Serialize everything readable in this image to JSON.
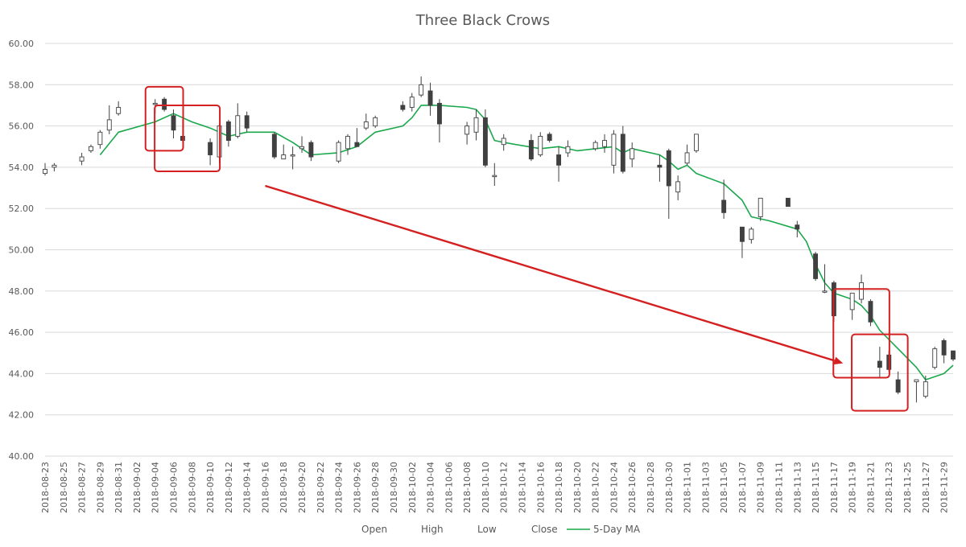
{
  "chart_data": {
    "type": "candlestick",
    "title": "Three Black Crows",
    "ylim": [
      40,
      60
    ],
    "y_ticks": [
      "40.00",
      "42.00",
      "44.00",
      "46.00",
      "48.00",
      "50.00",
      "52.00",
      "54.00",
      "56.00",
      "58.00",
      "60.00"
    ],
    "x_start": "2018-08-23",
    "x_end": "2018-11-30",
    "x_tick_labels": [
      "2018-08-23",
      "2018-08-25",
      "2018-08-27",
      "2018-08-29",
      "2018-08-31",
      "2018-09-02",
      "2018-09-04",
      "2018-09-06",
      "2018-09-08",
      "2018-09-10",
      "2018-09-12",
      "2018-09-14",
      "2018-09-16",
      "2018-09-18",
      "2018-09-20",
      "2018-09-22",
      "2018-09-24",
      "2018-09-26",
      "2018-09-28",
      "2018-09-30",
      "2018-10-02",
      "2018-10-04",
      "2018-10-06",
      "2018-10-08",
      "2018-10-10",
      "2018-10-12",
      "2018-10-14",
      "2018-10-16",
      "2018-10-18",
      "2018-10-20",
      "2018-10-22",
      "2018-10-24",
      "2018-10-26",
      "2018-10-28",
      "2018-10-30",
      "2018-11-01",
      "2018-11-03",
      "2018-11-05",
      "2018-11-07",
      "2018-11-09",
      "2018-11-11",
      "2018-11-13",
      "2018-11-15",
      "2018-11-17",
      "2018-11-19",
      "2018-11-21",
      "2018-11-23",
      "2018-11-25",
      "2018-11-27",
      "2018-11-29"
    ],
    "legend": [
      "Open",
      "High",
      "Low",
      "Close",
      "5-Day MA"
    ],
    "legend_position": "bottom",
    "colors": {
      "ma": "#1aa84c",
      "up": "#ffffff",
      "down": "#404040",
      "wick": "#404040",
      "annotation": "#d42020",
      "grid": "#d9d9d9"
    },
    "candles": [
      {
        "date": "2018-08-23",
        "open": 53.7,
        "high": 54.2,
        "low": 53.6,
        "close": 53.9
      },
      {
        "date": "2018-08-24",
        "open": 54.0,
        "high": 54.2,
        "low": 53.8,
        "close": 54.1
      },
      {
        "date": "2018-08-27",
        "open": 54.3,
        "high": 54.7,
        "low": 54.1,
        "close": 54.5
      },
      {
        "date": "2018-08-28",
        "open": 54.8,
        "high": 55.1,
        "low": 54.7,
        "close": 55.0
      },
      {
        "date": "2018-08-29",
        "open": 55.1,
        "high": 55.8,
        "low": 54.9,
        "close": 55.7
      },
      {
        "date": "2018-08-30",
        "open": 55.8,
        "high": 57.0,
        "low": 55.6,
        "close": 56.3
      },
      {
        "date": "2018-08-31",
        "open": 56.6,
        "high": 57.2,
        "low": 56.5,
        "close": 56.9
      },
      {
        "date": "2018-09-04",
        "open": 57.1,
        "high": 57.3,
        "low": 56.6,
        "close": 57.1
      },
      {
        "date": "2018-09-05",
        "open": 57.3,
        "high": 57.4,
        "low": 56.7,
        "close": 56.8
      },
      {
        "date": "2018-09-06",
        "open": 56.5,
        "high": 56.8,
        "low": 55.4,
        "close": 55.8
      },
      {
        "date": "2018-09-07",
        "open": 55.5,
        "high": 56.3,
        "low": 55.2,
        "close": 55.3
      },
      {
        "date": "2018-09-10",
        "open": 55.2,
        "high": 55.4,
        "low": 54.1,
        "close": 54.6
      },
      {
        "date": "2018-09-11",
        "open": 54.5,
        "high": 56.1,
        "low": 54.2,
        "close": 56.0
      },
      {
        "date": "2018-09-12",
        "open": 56.2,
        "high": 56.3,
        "low": 55.0,
        "close": 55.3
      },
      {
        "date": "2018-09-13",
        "open": 55.5,
        "high": 57.1,
        "low": 55.4,
        "close": 56.5
      },
      {
        "date": "2018-09-14",
        "open": 56.5,
        "high": 56.7,
        "low": 55.7,
        "close": 55.9
      },
      {
        "date": "2018-09-17",
        "open": 55.6,
        "high": 55.7,
        "low": 54.4,
        "close": 54.5
      },
      {
        "date": "2018-09-18",
        "open": 54.4,
        "high": 55.1,
        "low": 54.4,
        "close": 54.6
      },
      {
        "date": "2018-09-19",
        "open": 54.6,
        "high": 55.0,
        "low": 53.9,
        "close": 54.6
      },
      {
        "date": "2018-09-20",
        "open": 54.9,
        "high": 55.5,
        "low": 54.7,
        "close": 55.0
      },
      {
        "date": "2018-09-21",
        "open": 55.2,
        "high": 55.3,
        "low": 54.3,
        "close": 54.5
      },
      {
        "date": "2018-09-24",
        "open": 54.3,
        "high": 55.3,
        "low": 54.2,
        "close": 55.2
      },
      {
        "date": "2018-09-25",
        "open": 54.9,
        "high": 55.6,
        "low": 54.6,
        "close": 55.5
      },
      {
        "date": "2018-09-26",
        "open": 55.2,
        "high": 55.9,
        "low": 55.0,
        "close": 55.0
      },
      {
        "date": "2018-09-27",
        "open": 55.9,
        "high": 56.6,
        "low": 55.8,
        "close": 56.2
      },
      {
        "date": "2018-09-28",
        "open": 56.0,
        "high": 56.5,
        "low": 55.9,
        "close": 56.4
      },
      {
        "date": "2018-10-01",
        "open": 57.0,
        "high": 57.2,
        "low": 56.7,
        "close": 56.8
      },
      {
        "date": "2018-10-02",
        "open": 56.9,
        "high": 57.6,
        "low": 56.7,
        "close": 57.4
      },
      {
        "date": "2018-10-03",
        "open": 57.5,
        "high": 58.4,
        "low": 57.4,
        "close": 58.0
      },
      {
        "date": "2018-10-04",
        "open": 57.7,
        "high": 58.1,
        "low": 56.5,
        "close": 57.0
      },
      {
        "date": "2018-10-05",
        "open": 57.1,
        "high": 57.3,
        "low": 55.2,
        "close": 56.1
      },
      {
        "date": "2018-10-08",
        "open": 55.6,
        "high": 56.2,
        "low": 55.1,
        "close": 56.0
      },
      {
        "date": "2018-10-09",
        "open": 55.7,
        "high": 56.8,
        "low": 55.3,
        "close": 56.4
      },
      {
        "date": "2018-10-10",
        "open": 56.4,
        "high": 56.8,
        "low": 54.0,
        "close": 54.1
      },
      {
        "date": "2018-10-11",
        "open": 53.6,
        "high": 54.2,
        "low": 53.1,
        "close": 53.6
      },
      {
        "date": "2018-10-12",
        "open": 55.1,
        "high": 55.6,
        "low": 54.8,
        "close": 55.4
      },
      {
        "date": "2018-10-15",
        "open": 55.3,
        "high": 55.6,
        "low": 54.3,
        "close": 54.4
      },
      {
        "date": "2018-10-16",
        "open": 54.6,
        "high": 55.7,
        "low": 54.5,
        "close": 55.5
      },
      {
        "date": "2018-10-17",
        "open": 55.6,
        "high": 55.7,
        "low": 55.2,
        "close": 55.3
      },
      {
        "date": "2018-10-18",
        "open": 54.6,
        "high": 55.0,
        "low": 53.3,
        "close": 54.1
      },
      {
        "date": "2018-10-19",
        "open": 54.7,
        "high": 55.3,
        "low": 54.5,
        "close": 55.0
      },
      {
        "date": "2018-10-22",
        "open": 54.9,
        "high": 55.3,
        "low": 54.8,
        "close": 55.2
      },
      {
        "date": "2018-10-23",
        "open": 55.0,
        "high": 55.6,
        "low": 54.7,
        "close": 55.3
      },
      {
        "date": "2018-10-24",
        "open": 54.1,
        "high": 55.8,
        "low": 53.7,
        "close": 55.6
      },
      {
        "date": "2018-10-25",
        "open": 55.6,
        "high": 56.0,
        "low": 53.7,
        "close": 53.8
      },
      {
        "date": "2018-10-26",
        "open": 54.4,
        "high": 55.2,
        "low": 54.0,
        "close": 54.9
      },
      {
        "date": "2018-10-29",
        "open": 54.1,
        "high": 54.6,
        "low": 53.3,
        "close": 54.0
      },
      {
        "date": "2018-10-30",
        "open": 54.8,
        "high": 54.9,
        "low": 51.5,
        "close": 53.1
      },
      {
        "date": "2018-10-31",
        "open": 52.8,
        "high": 53.6,
        "low": 52.4,
        "close": 53.3
      },
      {
        "date": "2018-11-01",
        "open": 54.2,
        "high": 55.1,
        "low": 54.1,
        "close": 54.7
      },
      {
        "date": "2018-11-02",
        "open": 54.8,
        "high": 55.6,
        "low": 54.7,
        "close": 55.6
      },
      {
        "date": "2018-11-05",
        "open": 52.4,
        "high": 53.4,
        "low": 51.5,
        "close": 51.8
      },
      {
        "date": "2018-11-07",
        "open": 51.1,
        "high": 51.1,
        "low": 49.6,
        "close": 50.4
      },
      {
        "date": "2018-11-08",
        "open": 50.5,
        "high": 51.1,
        "low": 50.3,
        "close": 51.0
      },
      {
        "date": "2018-11-09",
        "open": 51.6,
        "high": 52.5,
        "low": 51.4,
        "close": 52.5
      },
      {
        "date": "2018-11-12",
        "open": 52.5,
        "high": 52.5,
        "low": 52.1,
        "close": 52.1
      },
      {
        "date": "2018-11-13",
        "open": 51.2,
        "high": 51.4,
        "low": 50.6,
        "close": 51.0
      },
      {
        "date": "2018-11-15",
        "open": 49.8,
        "high": 49.9,
        "low": 48.5,
        "close": 48.6
      },
      {
        "date": "2018-11-16",
        "open": 48.0,
        "high": 49.3,
        "low": 47.9,
        "close": 48.0
      },
      {
        "date": "2018-11-17",
        "open": 48.4,
        "high": 48.5,
        "low": 46.5,
        "close": 46.8
      },
      {
        "date": "2018-11-19",
        "open": 47.1,
        "high": 47.9,
        "low": 46.6,
        "close": 47.9
      },
      {
        "date": "2018-11-20",
        "open": 47.6,
        "high": 48.8,
        "low": 47.4,
        "close": 48.4
      },
      {
        "date": "2018-11-21",
        "open": 47.5,
        "high": 47.6,
        "low": 46.3,
        "close": 46.5
      },
      {
        "date": "2018-11-22",
        "open": 44.6,
        "high": 45.3,
        "low": 43.8,
        "close": 44.3
      },
      {
        "date": "2018-11-23",
        "open": 44.9,
        "high": 45.1,
        "low": 44.1,
        "close": 44.2
      },
      {
        "date": "2018-11-24",
        "open": 43.7,
        "high": 44.1,
        "low": 43.0,
        "close": 43.1
      },
      {
        "date": "2018-11-26",
        "open": 43.6,
        "high": 43.7,
        "low": 42.6,
        "close": 43.7
      },
      {
        "date": "2018-11-27",
        "open": 42.9,
        "high": 43.9,
        "low": 42.8,
        "close": 43.6
      },
      {
        "date": "2018-11-28",
        "open": 44.3,
        "high": 45.3,
        "low": 44.2,
        "close": 45.2
      },
      {
        "date": "2018-11-29",
        "open": 45.6,
        "high": 45.7,
        "low": 44.5,
        "close": 44.9
      },
      {
        "date": "2018-11-30",
        "open": 45.1,
        "high": 45.1,
        "low": 44.6,
        "close": 44.7
      }
    ],
    "ma": [
      {
        "date": "2018-08-29",
        "value": 54.6
      },
      {
        "date": "2018-08-31",
        "value": 55.7
      },
      {
        "date": "2018-09-04",
        "value": 56.2
      },
      {
        "date": "2018-09-06",
        "value": 56.6
      },
      {
        "date": "2018-09-08",
        "value": 56.2
      },
      {
        "date": "2018-09-10",
        "value": 55.9
      },
      {
        "date": "2018-09-12",
        "value": 55.5
      },
      {
        "date": "2018-09-14",
        "value": 55.7
      },
      {
        "date": "2018-09-17",
        "value": 55.7
      },
      {
        "date": "2018-09-19",
        "value": 55.2
      },
      {
        "date": "2018-09-21",
        "value": 54.6
      },
      {
        "date": "2018-09-24",
        "value": 54.7
      },
      {
        "date": "2018-09-26",
        "value": 55.0
      },
      {
        "date": "2018-09-28",
        "value": 55.7
      },
      {
        "date": "2018-10-01",
        "value": 56.0
      },
      {
        "date": "2018-10-02",
        "value": 56.4
      },
      {
        "date": "2018-10-03",
        "value": 57.0
      },
      {
        "date": "2018-10-05",
        "value": 57.0
      },
      {
        "date": "2018-10-08",
        "value": 56.9
      },
      {
        "date": "2018-10-09",
        "value": 56.8
      },
      {
        "date": "2018-10-10",
        "value": 56.3
      },
      {
        "date": "2018-10-11",
        "value": 55.3
      },
      {
        "date": "2018-10-12",
        "value": 55.2
      },
      {
        "date": "2018-10-16",
        "value": 54.9
      },
      {
        "date": "2018-10-18",
        "value": 55.0
      },
      {
        "date": "2018-10-20",
        "value": 54.8
      },
      {
        "date": "2018-10-24",
        "value": 55.0
      },
      {
        "date": "2018-10-25",
        "value": 54.7
      },
      {
        "date": "2018-10-26",
        "value": 54.9
      },
      {
        "date": "2018-10-29",
        "value": 54.6
      },
      {
        "date": "2018-10-30",
        "value": 54.3
      },
      {
        "date": "2018-10-31",
        "value": 53.9
      },
      {
        "date": "2018-11-01",
        "value": 54.1
      },
      {
        "date": "2018-11-02",
        "value": 53.7
      },
      {
        "date": "2018-11-05",
        "value": 53.2
      },
      {
        "date": "2018-11-07",
        "value": 52.4
      },
      {
        "date": "2018-11-08",
        "value": 51.6
      },
      {
        "date": "2018-11-10",
        "value": 51.4
      },
      {
        "date": "2018-11-13",
        "value": 51.0
      },
      {
        "date": "2018-11-14",
        "value": 50.4
      },
      {
        "date": "2018-11-15",
        "value": 49.3
      },
      {
        "date": "2018-11-16",
        "value": 48.4
      },
      {
        "date": "2018-11-17",
        "value": 47.9
      },
      {
        "date": "2018-11-19",
        "value": 47.6
      },
      {
        "date": "2018-11-20",
        "value": 47.3
      },
      {
        "date": "2018-11-21",
        "value": 46.8
      },
      {
        "date": "2018-11-22",
        "value": 46.1
      },
      {
        "date": "2018-11-24",
        "value": 45.2
      },
      {
        "date": "2018-11-26",
        "value": 44.3
      },
      {
        "date": "2018-11-27",
        "value": 43.7
      },
      {
        "date": "2018-11-29",
        "value": 44.0
      },
      {
        "date": "2018-11-30",
        "value": 44.4
      }
    ],
    "annotations": {
      "highlight_windows": [
        {
          "from": "2018-09-04",
          "to": "2018-09-06",
          "low": 54.8,
          "high": 57.9
        },
        {
          "from": "2018-09-05",
          "to": "2018-09-10",
          "low": 53.8,
          "high": 57.0
        },
        {
          "from": "2018-11-18",
          "to": "2018-11-22",
          "low": 43.8,
          "high": 48.1
        },
        {
          "from": "2018-11-20",
          "to": "2018-11-24",
          "low": 42.2,
          "high": 45.9
        }
      ],
      "arrow": {
        "from_date": "2018-09-16",
        "from_value": 53.1,
        "to_date": "2018-11-18",
        "to_value": 44.5
      }
    }
  }
}
